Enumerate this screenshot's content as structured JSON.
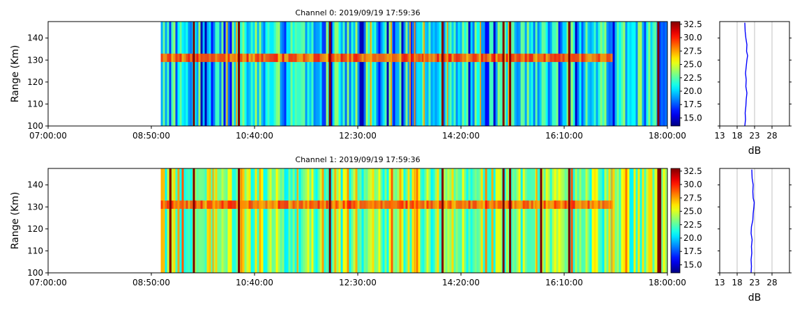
{
  "chart_data": [
    {
      "type": "heatmap",
      "title": "Channel 0: 2019/09/19 17:59:36",
      "ylabel": "Range (Km)",
      "xlabel": "",
      "x_ticks": [
        "07:00:00",
        "08:50:00",
        "10:40:00",
        "12:30:00",
        "14:20:00",
        "16:10:00",
        "18:00:00"
      ],
      "x_range": [
        "07:00:00",
        "18:00:00"
      ],
      "data_start": "09:00:00",
      "y_ticks": [
        100,
        110,
        120,
        130,
        140
      ],
      "ylim": [
        100,
        147.5
      ],
      "colorscale": "jet",
      "zlim": [
        13.5,
        33
      ],
      "colorbar_ticks": [
        "15.0",
        "17.5",
        "20.0",
        "22.5",
        "25.0",
        "27.5",
        "30.0",
        "32.5"
      ],
      "echo_band": {
        "range_km": 131,
        "until": "17:00:00"
      },
      "background_db": 21,
      "strong_columns": [
        "09:35:00",
        "10:23:00",
        "12:00:00",
        "14:00:00",
        "15:05:00",
        "15:12:00",
        "16:15:00",
        "17:50:00"
      ],
      "weak_columns": [
        "10:10:00",
        "10:20:00",
        "12:43:00",
        "13:05:00",
        "13:25:00",
        "13:30:00",
        "13:40:00",
        "14:05:00",
        "14:40:00",
        "15:10:00"
      ],
      "profile": {
        "xlabel": "dB",
        "x_ticks": [
          13,
          18,
          23,
          28
        ],
        "xlim": [
          13,
          33
        ],
        "mean_db": 20.2,
        "points": [
          [
            100,
            20.2
          ],
          [
            103,
            20.4
          ],
          [
            106,
            20.3
          ],
          [
            109,
            20.5
          ],
          [
            112,
            20.6
          ],
          [
            115,
            20.8
          ],
          [
            118,
            20.5
          ],
          [
            121,
            20.6
          ],
          [
            124,
            20.4
          ],
          [
            127,
            20.6
          ],
          [
            130,
            20.8
          ],
          [
            132,
            21.0
          ],
          [
            134,
            20.7
          ],
          [
            137,
            20.8
          ],
          [
            140,
            20.5
          ],
          [
            143,
            20.3
          ],
          [
            147,
            20.2
          ]
        ]
      }
    },
    {
      "type": "heatmap",
      "title": "Channel 1: 2019/09/19 17:59:36",
      "ylabel": "Range (Km)",
      "xlabel": "",
      "x_ticks": [
        "07:00:00",
        "08:50:00",
        "10:40:00",
        "12:30:00",
        "14:20:00",
        "16:10:00",
        "18:00:00"
      ],
      "x_range": [
        "07:00:00",
        "18:00:00"
      ],
      "data_start": "09:00:00",
      "y_ticks": [
        100,
        110,
        120,
        130,
        140
      ],
      "ylim": [
        100,
        147.5
      ],
      "colorscale": "jet",
      "zlim": [
        13.5,
        33
      ],
      "colorbar_ticks": [
        "15.0",
        "17.5",
        "20.0",
        "22.5",
        "25.0",
        "27.5",
        "30.0",
        "32.5"
      ],
      "echo_band": {
        "range_km": 131,
        "until": "17:00:00"
      },
      "background_db": 23.5,
      "strong_columns": [
        "09:10:00",
        "09:35:00",
        "10:23:00",
        "12:00:00",
        "14:00:00",
        "15:05:00",
        "15:12:00",
        "15:45:00",
        "16:15:00",
        "17:50:00",
        "17:52:00"
      ],
      "weak_columns": [
        "09:55:00",
        "10:45:00",
        "11:25:00",
        "12:05:00",
        "13:30:00",
        "15:40:00",
        "17:00:00"
      ],
      "profile": {
        "xlabel": "dB",
        "x_ticks": [
          13,
          18,
          23,
          28
        ],
        "xlim": [
          13,
          33
        ],
        "mean_db": 22.2,
        "points": [
          [
            100,
            22.0
          ],
          [
            103,
            22.1
          ],
          [
            106,
            22.0
          ],
          [
            109,
            22.2
          ],
          [
            112,
            22.1
          ],
          [
            115,
            22.3
          ],
          [
            118,
            22.0
          ],
          [
            121,
            22.1
          ],
          [
            124,
            22.5
          ],
          [
            127,
            22.6
          ],
          [
            130,
            22.8
          ],
          [
            132,
            22.9
          ],
          [
            134,
            22.6
          ],
          [
            137,
            22.5
          ],
          [
            140,
            22.6
          ],
          [
            143,
            22.3
          ],
          [
            147,
            22.2
          ]
        ]
      }
    }
  ]
}
